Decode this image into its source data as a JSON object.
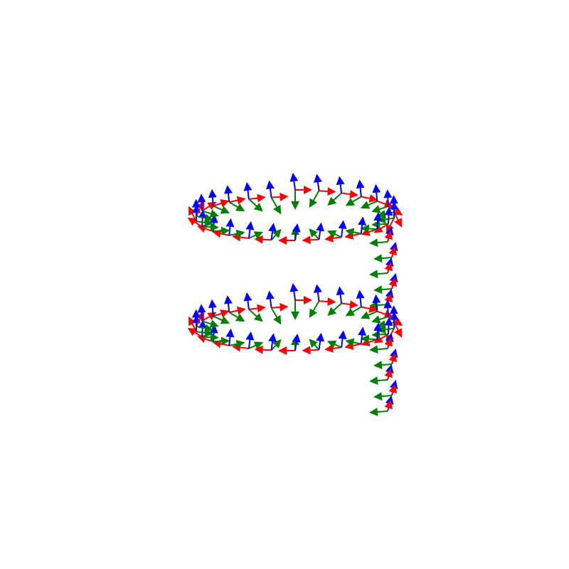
{
  "figure": {
    "description_free": true
  },
  "frames": {
    "axis_colors": {
      "x": "#ff0000",
      "y": "#008000",
      "z": "#0000ff"
    },
    "helix_turns": 2,
    "frames_per_turn": 26,
    "tail_frames": 5
  }
}
